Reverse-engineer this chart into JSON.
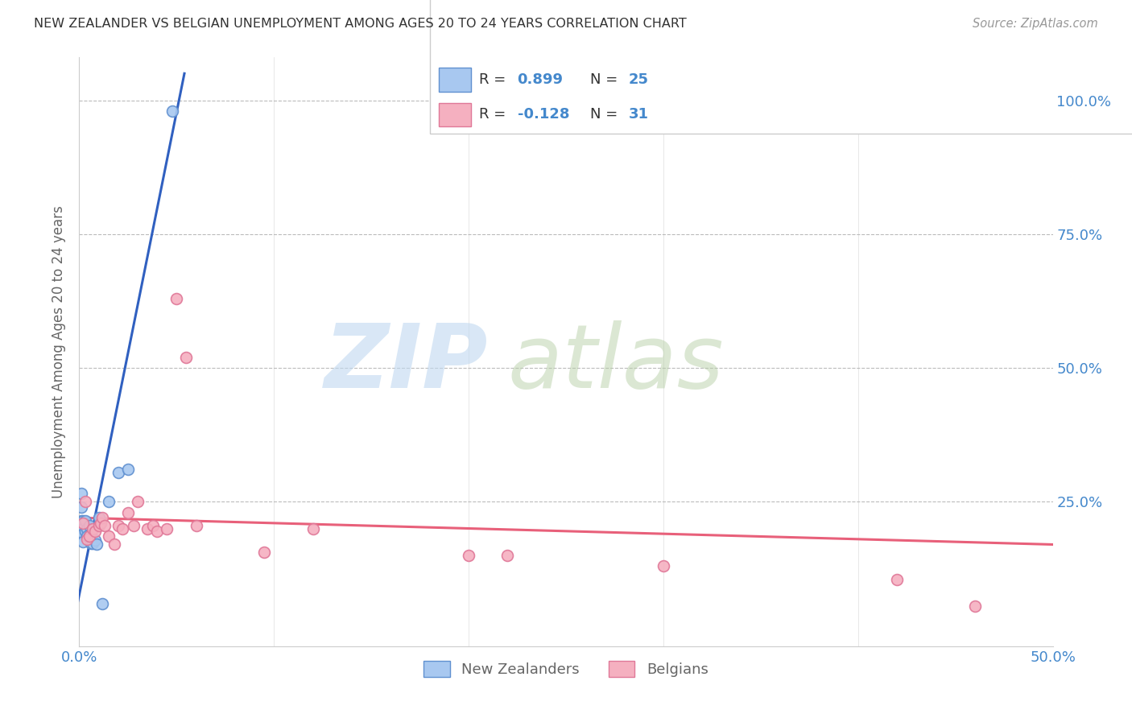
{
  "title": "NEW ZEALANDER VS BELGIAN UNEMPLOYMENT AMONG AGES 20 TO 24 YEARS CORRELATION CHART",
  "source": "Source: ZipAtlas.com",
  "ylabel": "Unemployment Among Ages 20 to 24 years",
  "xlim": [
    0.0,
    0.5
  ],
  "ylim": [
    -0.02,
    1.08
  ],
  "xticks": [
    0.0,
    0.1,
    0.2,
    0.3,
    0.4,
    0.5
  ],
  "yticks": [
    0.0,
    0.25,
    0.5,
    0.75,
    1.0
  ],
  "xtick_labels": [
    "0.0%",
    "",
    "",
    "",
    "",
    "50.0%"
  ],
  "ytick_labels_right": [
    "",
    "25.0%",
    "50.0%",
    "75.0%",
    "100.0%"
  ],
  "nz_color": "#A8C8F0",
  "nz_edge_color": "#6090D0",
  "belgian_color": "#F5B0C0",
  "belgian_edge_color": "#E07898",
  "nz_line_color": "#3060C0",
  "belgian_line_color": "#E8607A",
  "nz_R": "0.899",
  "nz_N": "25",
  "belgian_R": "-0.128",
  "belgian_N": "31",
  "legend_label_nz": "New Zealanders",
  "legend_label_belgian": "Belgians",
  "nz_x": [
    0.001,
    0.001,
    0.001,
    0.001,
    0.002,
    0.002,
    0.002,
    0.002,
    0.003,
    0.003,
    0.004,
    0.004,
    0.005,
    0.005,
    0.006,
    0.006,
    0.007,
    0.008,
    0.009,
    0.01,
    0.012,
    0.015,
    0.02,
    0.025,
    0.048
  ],
  "nz_y": [
    0.265,
    0.24,
    0.215,
    0.195,
    0.215,
    0.2,
    0.19,
    0.175,
    0.215,
    0.195,
    0.2,
    0.185,
    0.205,
    0.185,
    0.19,
    0.172,
    0.172,
    0.178,
    0.17,
    0.22,
    0.06,
    0.25,
    0.305,
    0.31,
    0.98
  ],
  "belgian_x": [
    0.002,
    0.003,
    0.004,
    0.005,
    0.007,
    0.008,
    0.01,
    0.011,
    0.012,
    0.013,
    0.015,
    0.018,
    0.02,
    0.022,
    0.025,
    0.028,
    0.03,
    0.035,
    0.038,
    0.04,
    0.045,
    0.05,
    0.055,
    0.06,
    0.095,
    0.12,
    0.2,
    0.22,
    0.3,
    0.42,
    0.46
  ],
  "belgian_y": [
    0.21,
    0.25,
    0.18,
    0.185,
    0.2,
    0.195,
    0.205,
    0.21,
    0.22,
    0.205,
    0.185,
    0.17,
    0.205,
    0.2,
    0.23,
    0.205,
    0.25,
    0.2,
    0.205,
    0.195,
    0.2,
    0.63,
    0.52,
    0.205,
    0.155,
    0.2,
    0.15,
    0.15,
    0.13,
    0.105,
    0.055
  ],
  "nz_trend_x": [
    -0.002,
    0.054
  ],
  "nz_trend_y": [
    0.04,
    1.05
  ],
  "belgian_trend_x": [
    0.0,
    0.5
  ],
  "belgian_trend_y": [
    0.22,
    0.17
  ],
  "background_color": "#FFFFFF",
  "grid_color": "#BBBBBB",
  "title_color": "#333333",
  "axis_tick_color": "#4488CC",
  "scatter_size": 100,
  "watermark_zip_color": "#C0D8F0",
  "watermark_atlas_color": "#B8D0A8"
}
